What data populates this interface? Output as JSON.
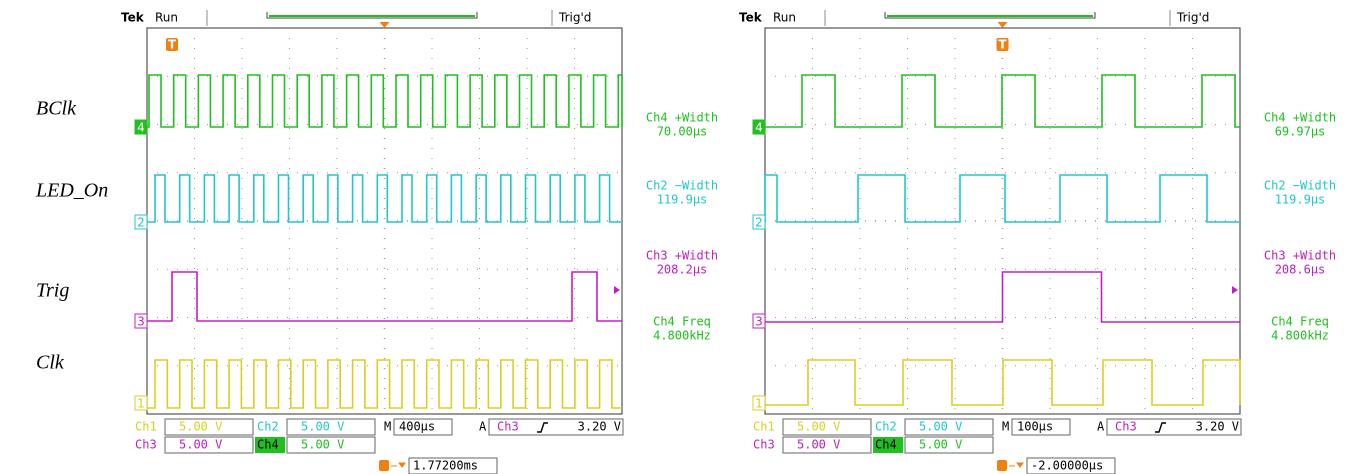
{
  "labels": [
    "BClk",
    "LED_On",
    "Trig",
    "Clk"
  ],
  "scopes": [
    {
      "brand": "Tek",
      "status": "Run",
      "trigger_state": "Trig'd",
      "trigger_marker": "T",
      "channel_markers": [
        "4",
        "2",
        "3",
        "1"
      ],
      "measurements": [
        {
          "name": "Ch4 +Width",
          "value": "70.00µs"
        },
        {
          "name": "Ch2 −Width",
          "value": "119.9µs"
        },
        {
          "name": "Ch3 +Width",
          "value": "208.2µs"
        },
        {
          "name": "Ch4 Freq",
          "value": "4.800kHz"
        }
      ],
      "settings": [
        {
          "channel": "Ch1",
          "scale": "5.00 V"
        },
        {
          "channel": "Ch2",
          "scale": "5.00 V"
        },
        {
          "channel": "Ch3",
          "scale": "5.00 V"
        },
        {
          "channel": "Ch4",
          "scale": "5.00 V"
        }
      ],
      "timebase": {
        "label": "M",
        "value": "400µs"
      },
      "trigger": {
        "label": "A",
        "source": "Ch3",
        "level": "3.20 V"
      },
      "position": "1.77200ms"
    },
    {
      "brand": "Tek",
      "status": "Run",
      "trigger_state": "Trig'd",
      "trigger_marker": "T",
      "channel_markers": [
        "4",
        "2",
        "3",
        "1"
      ],
      "measurements": [
        {
          "name": "Ch4 +Width",
          "value": "69.97µs"
        },
        {
          "name": "Ch2 −Width",
          "value": "119.9µs"
        },
        {
          "name": "Ch3 +Width",
          "value": "208.6µs"
        },
        {
          "name": "Ch4 Freq",
          "value": "4.800kHz"
        }
      ],
      "settings": [
        {
          "channel": "Ch1",
          "scale": "5.00 V"
        },
        {
          "channel": "Ch2",
          "scale": "5.00 V"
        },
        {
          "channel": "Ch3",
          "scale": "5.00 V"
        },
        {
          "channel": "Ch4",
          "scale": "5.00 V"
        }
      ],
      "timebase": {
        "label": "M",
        "value": "100µs"
      },
      "trigger": {
        "label": "A",
        "source": "Ch3",
        "level": "3.20 V"
      },
      "position": "-2.00000µs"
    }
  ]
}
